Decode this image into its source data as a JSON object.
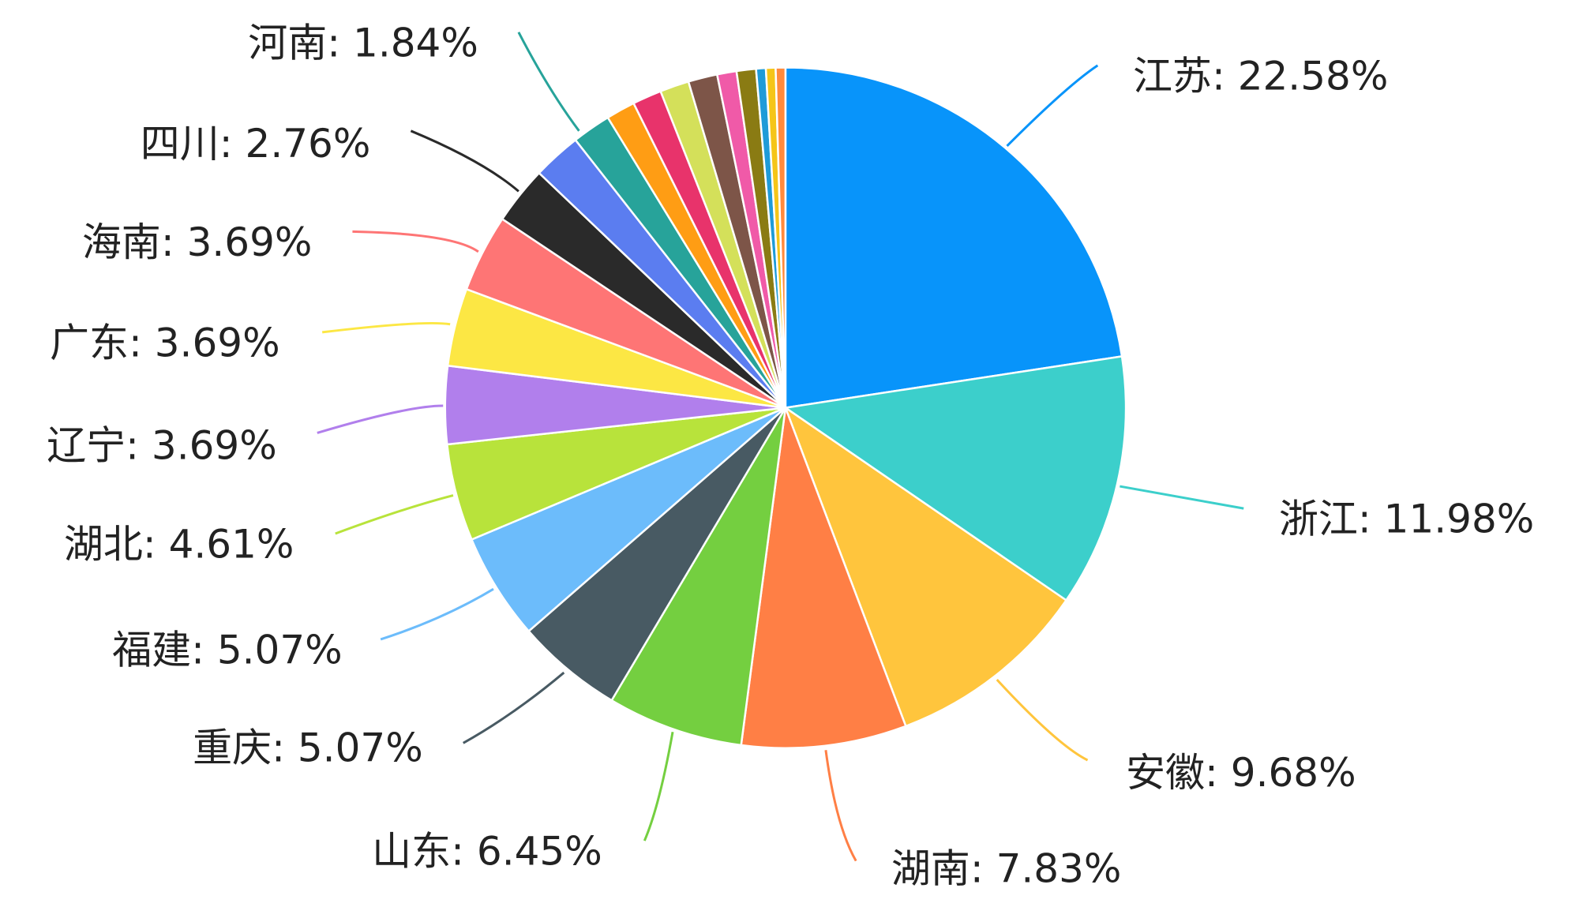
{
  "chart_data": {
    "type": "pie",
    "categories": [
      "江苏",
      "浙江",
      "安徽",
      "湖南",
      "山东",
      "重庆",
      "福建",
      "湖北",
      "辽宁",
      "广东",
      "海南",
      "四川",
      null,
      "河南",
      null,
      null,
      null,
      null,
      null,
      null,
      null,
      null,
      null
    ],
    "values": [
      22.58,
      11.98,
      9.68,
      7.83,
      6.45,
      5.07,
      5.07,
      4.61,
      3.69,
      3.69,
      3.69,
      2.76,
      2.3,
      1.84,
      1.38,
      1.38,
      1.38,
      1.38,
      0.92,
      0.92,
      0.46,
      0.46,
      0.46
    ],
    "value_labels": [
      "22.58%",
      "11.98%",
      "9.68%",
      "7.83%",
      "6.45%",
      "5.07%",
      "5.07%",
      "4.61%",
      "3.69%",
      "3.69%",
      "3.69%",
      "2.76%",
      null,
      "1.84%",
      null,
      null,
      null,
      null,
      null,
      null,
      null,
      null,
      null
    ],
    "label_separator": ": ",
    "colors": [
      "#0894fa",
      "#3ccfcb",
      "#ffc53d",
      "#ff7f45",
      "#74cf40",
      "#485a63",
      "#6cbcfb",
      "#b8e33b",
      "#b17fec",
      "#fce744",
      "#fe7575",
      "#2a2a2a",
      "#5b7df0",
      "#27a39a",
      "#ff9d14",
      "#e8336b",
      "#d4e05a",
      "#7d5548",
      "#f05aa8",
      "#8a7b13",
      "#1e9bd8",
      "#f5c518",
      "#ff8a3d"
    ]
  }
}
